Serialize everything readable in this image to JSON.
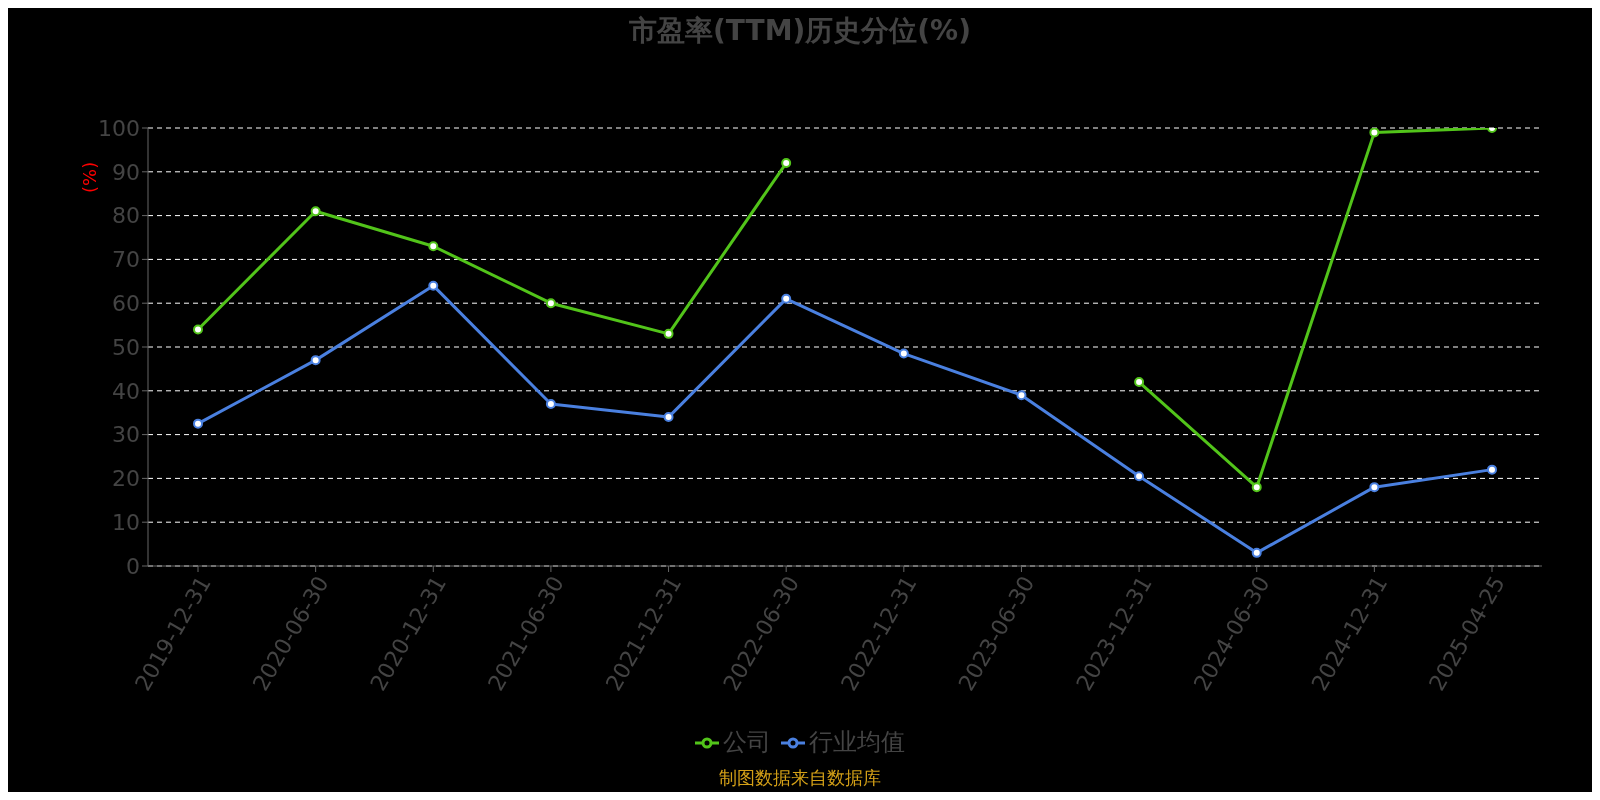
{
  "chart_data": {
    "type": "line",
    "title": "市盈率(TTM)历史分位(%)",
    "ylabel": "(%)",
    "categories": [
      "2019-12-31",
      "2020-06-30",
      "2020-12-31",
      "2021-06-30",
      "2021-12-31",
      "2022-06-30",
      "2022-12-31",
      "2023-06-30",
      "2023-12-31",
      "2024-06-30",
      "2024-12-31",
      "2025-04-25"
    ],
    "series": [
      {
        "name": "公司",
        "color": "#52c41a",
        "values": [
          54,
          81,
          73,
          60,
          53,
          92,
          null,
          null,
          42,
          18,
          99,
          100
        ]
      },
      {
        "name": "行业均值",
        "color": "#4a80e0",
        "values": [
          32.5,
          47,
          64,
          37,
          34,
          61,
          48.5,
          39,
          20.5,
          3,
          18,
          22
        ]
      }
    ],
    "ylim": [
      0,
      100
    ],
    "yticks": [
      0,
      10,
      20,
      30,
      40,
      50,
      60,
      70,
      80,
      90,
      100
    ],
    "grid": "y",
    "legend": "bottom",
    "marker": "circle",
    "line_style": "solid",
    "annotations": [
      "制图数据来自数据库"
    ]
  }
}
